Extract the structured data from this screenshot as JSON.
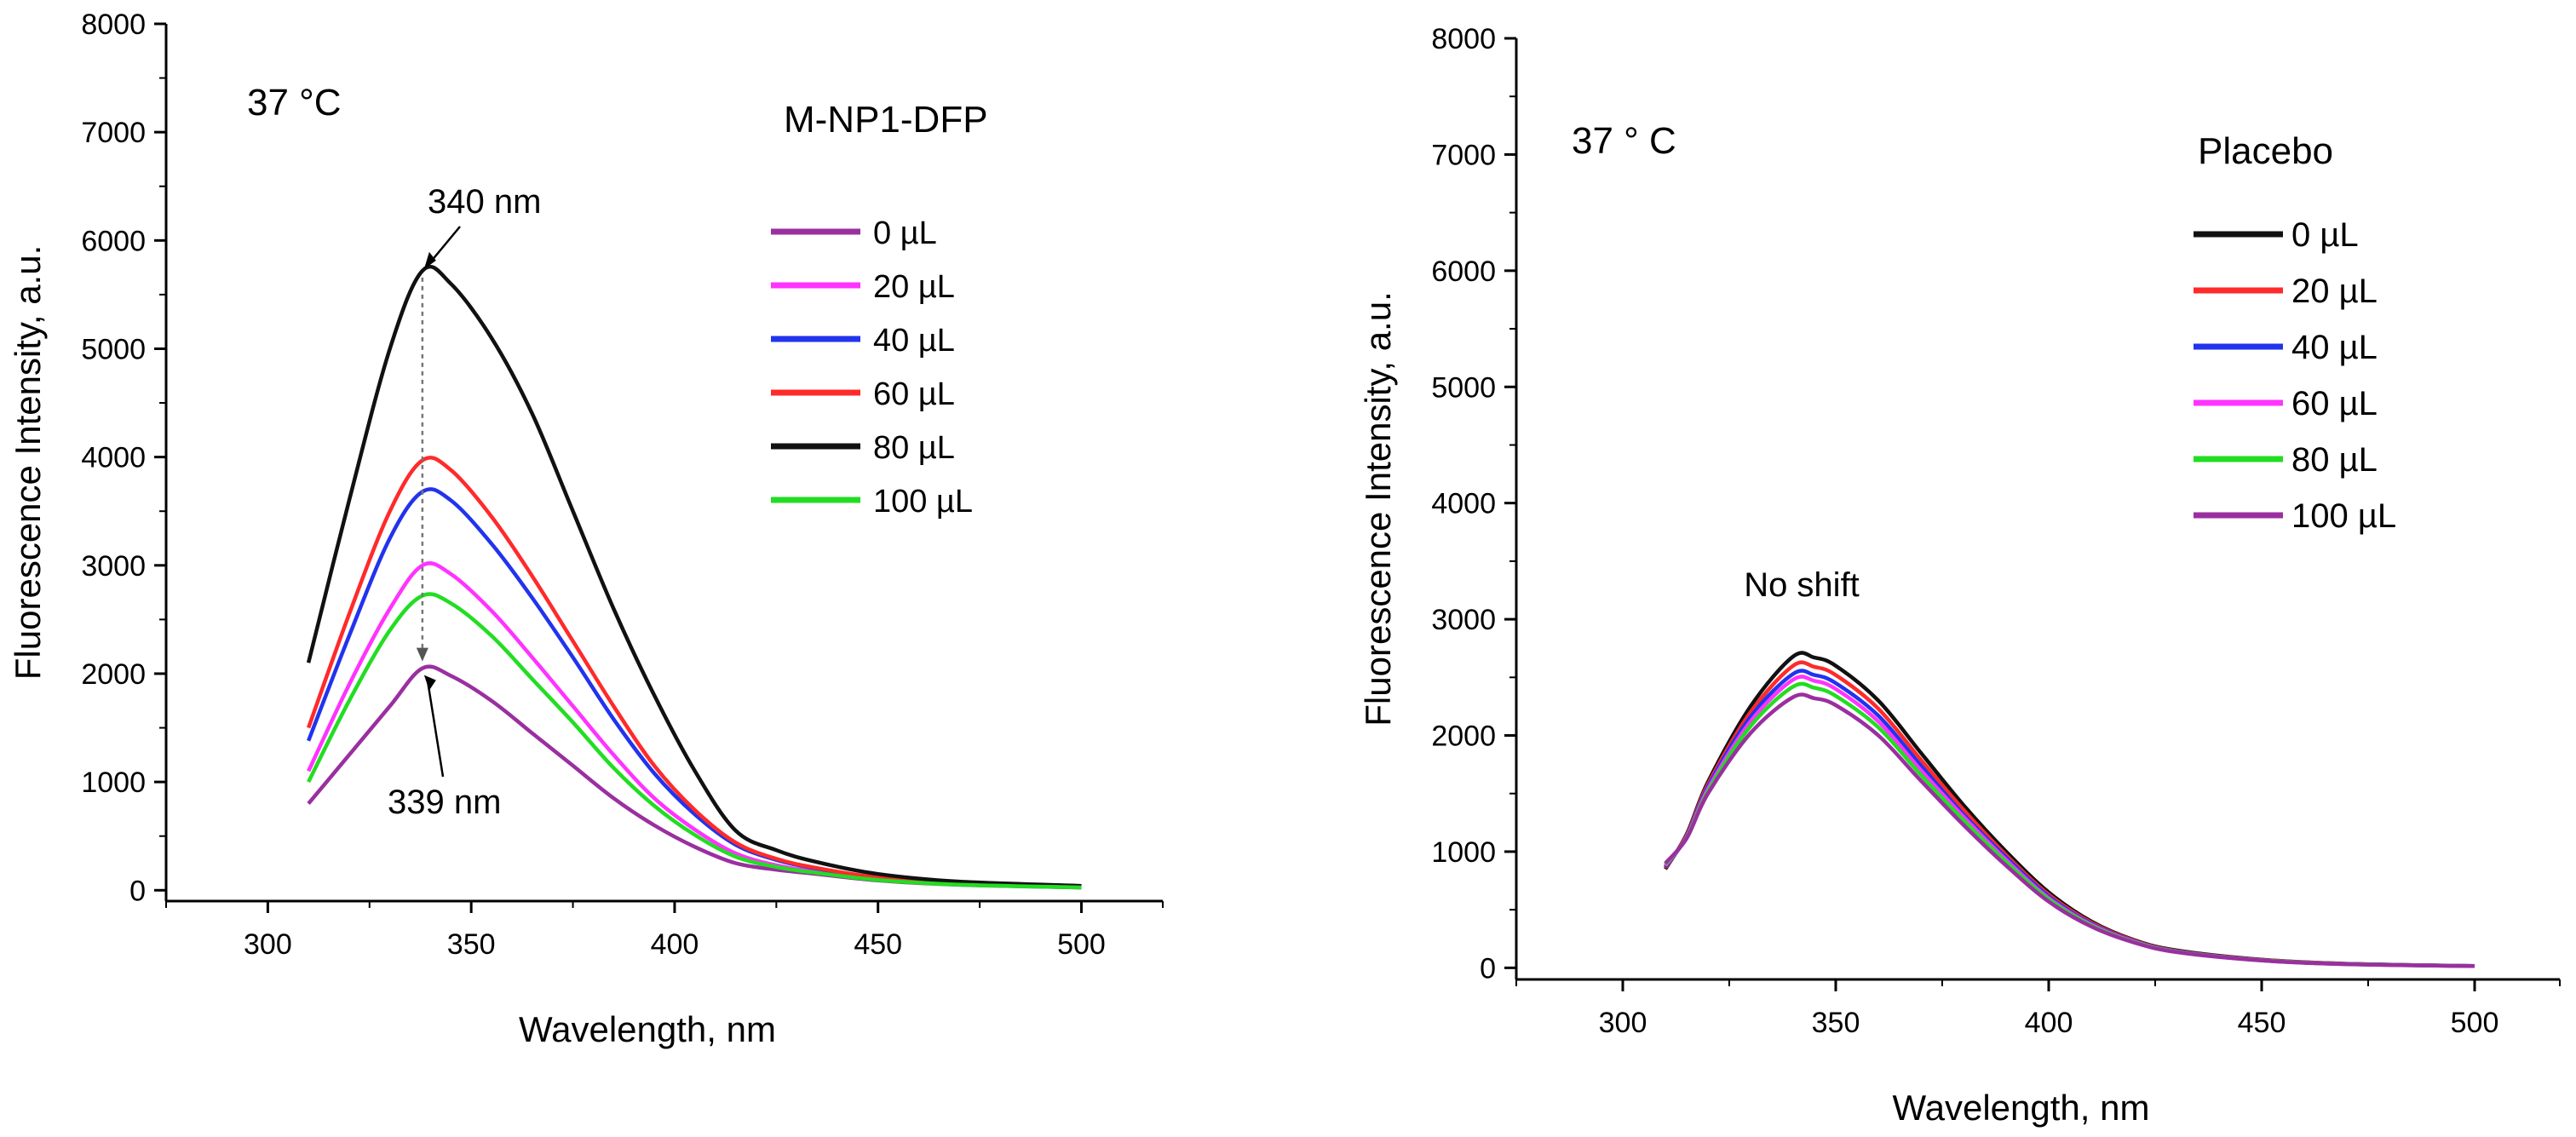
{
  "chart_data": [
    {
      "id": "left",
      "type": "line",
      "xlabel": "Wavelength, nm",
      "ylabel": "Fluorescence Intensity, a.u.",
      "xlim": [
        275,
        520
      ],
      "ylim": [
        -100,
        8000
      ],
      "xticks": [
        300,
        350,
        400,
        450,
        500
      ],
      "yticks": [
        0,
        1000,
        2000,
        3000,
        4000,
        5000,
        6000,
        7000,
        8000
      ],
      "temperature": "37 °C",
      "legend_title": "M-NP1-DFP",
      "peak_top_label": "340 nm",
      "peak_bottom_label": "339 nm",
      "x": [
        310,
        320,
        330,
        338,
        345,
        355,
        365,
        375,
        385,
        395,
        405,
        415,
        425,
        435,
        450,
        470,
        500
      ],
      "series": [
        {
          "name": "0 µL",
          "color": "#9a2fa0",
          "values": [
            800,
            1250,
            1700,
            2050,
            1980,
            1750,
            1450,
            1150,
            850,
            600,
            400,
            250,
            190,
            150,
            90,
            50,
            25
          ]
        },
        {
          "name": "20 µL",
          "color": "#ff33ff",
          "values": [
            1100,
            1900,
            2600,
            3000,
            2920,
            2580,
            2150,
            1700,
            1250,
            850,
            560,
            340,
            230,
            170,
            100,
            55,
            28
          ]
        },
        {
          "name": "40 µL",
          "color": "#2233ee",
          "values": [
            1380,
            2350,
            3250,
            3680,
            3600,
            3200,
            2700,
            2150,
            1580,
            1080,
            700,
            420,
            280,
            200,
            115,
            60,
            30
          ]
        },
        {
          "name": "60 µL",
          "color": "#ff2a2a",
          "values": [
            1500,
            2550,
            3500,
            3970,
            3880,
            3450,
            2900,
            2300,
            1700,
            1150,
            740,
            440,
            290,
            205,
            118,
            62,
            30
          ]
        },
        {
          "name": "80 µL",
          "color": "#111111",
          "values": [
            2100,
            3600,
            5000,
            5720,
            5600,
            5100,
            4400,
            3500,
            2600,
            1800,
            1100,
            550,
            370,
            260,
            150,
            80,
            40
          ]
        },
        {
          "name": "100 µL",
          "color": "#22dd22",
          "values": [
            1000,
            1750,
            2400,
            2720,
            2650,
            2350,
            1950,
            1550,
            1130,
            780,
            510,
            310,
            215,
            160,
            95,
            52,
            26
          ]
        }
      ]
    },
    {
      "id": "right",
      "type": "line",
      "xlabel": "Wavelength, nm",
      "ylabel": "Fluorescence Intensity, a.u.",
      "xlim": [
        275,
        520
      ],
      "ylim": [
        -100,
        8000
      ],
      "xticks": [
        300,
        350,
        400,
        450,
        500
      ],
      "yticks": [
        0,
        1000,
        2000,
        3000,
        4000,
        5000,
        6000,
        7000,
        8000
      ],
      "temperature": "37 ° C",
      "legend_title": "Placebo",
      "annotation": "No shift",
      "x": [
        310,
        315,
        320,
        330,
        340,
        345,
        350,
        360,
        370,
        380,
        390,
        400,
        410,
        420,
        430,
        450,
        470,
        500
      ],
      "series": [
        {
          "name": "0 µL",
          "color": "#111111",
          "values": [
            850,
            1150,
            1600,
            2250,
            2680,
            2670,
            2600,
            2300,
            1850,
            1400,
            1000,
            650,
            400,
            240,
            150,
            70,
            35,
            15
          ]
        },
        {
          "name": "20 µL",
          "color": "#ff2a2a",
          "values": [
            860,
            1140,
            1580,
            2200,
            2600,
            2590,
            2520,
            2230,
            1790,
            1360,
            970,
            630,
            390,
            235,
            145,
            68,
            34,
            15
          ]
        },
        {
          "name": "40 µL",
          "color": "#2233ee",
          "values": [
            870,
            1130,
            1560,
            2160,
            2530,
            2520,
            2450,
            2170,
            1740,
            1320,
            950,
            615,
            380,
            230,
            142,
            66,
            33,
            15
          ]
        },
        {
          "name": "60 µL",
          "color": "#ff33ff",
          "values": [
            880,
            1125,
            1540,
            2120,
            2480,
            2470,
            2400,
            2120,
            1700,
            1300,
            930,
            600,
            372,
            226,
            140,
            65,
            32,
            15
          ]
        },
        {
          "name": "80 µL",
          "color": "#22dd22",
          "values": [
            890,
            1120,
            1520,
            2080,
            2420,
            2410,
            2340,
            2070,
            1660,
            1270,
            910,
            590,
            365,
            222,
            138,
            64,
            32,
            15
          ]
        },
        {
          "name": "100 µL",
          "color": "#9a2fa0",
          "values": [
            900,
            1115,
            1500,
            2020,
            2330,
            2320,
            2260,
            2000,
            1610,
            1230,
            880,
            570,
            355,
            218,
            135,
            63,
            31,
            15
          ]
        }
      ]
    }
  ]
}
